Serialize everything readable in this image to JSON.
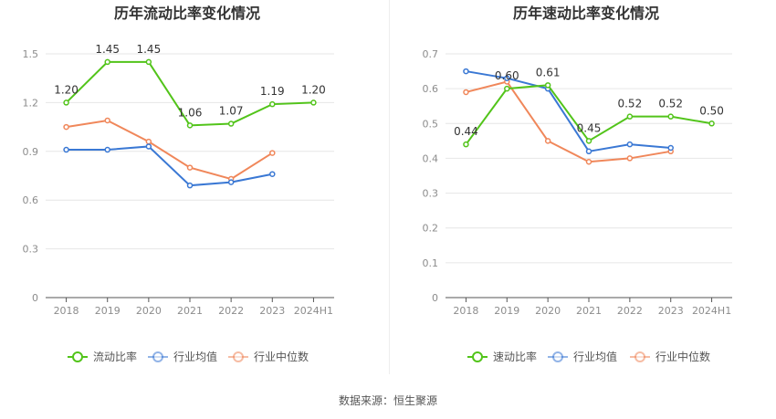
{
  "footer": {
    "source_label": "数据来源：恒生聚源"
  },
  "chart_data": [
    {
      "type": "line",
      "title": "历年流动比率变化情况",
      "categories": [
        "2018",
        "2019",
        "2020",
        "2021",
        "2022",
        "2023",
        "2024H1"
      ],
      "ylim": [
        0,
        1.5
      ],
      "yticks": [
        "0",
        "0.3",
        "0.6",
        "0.9",
        "1.2",
        "1.5"
      ],
      "grid": true,
      "legend_position": "bottom",
      "series": [
        {
          "name": "流动比率",
          "color": "#52c41a",
          "values": [
            1.2,
            1.45,
            1.45,
            1.06,
            1.07,
            1.19,
            1.2
          ],
          "labels": [
            "1.20",
            "1.45",
            "1.45",
            "1.06",
            "1.07",
            "1.19",
            "1.20"
          ]
        },
        {
          "name": "行业均值",
          "color": "#3a78d4",
          "values": [
            0.91,
            0.91,
            0.93,
            0.69,
            0.71,
            0.76,
            null
          ]
        },
        {
          "name": "行业中位数",
          "color": "#f0875a",
          "values": [
            1.05,
            1.09,
            0.96,
            0.8,
            0.73,
            0.89,
            null
          ]
        }
      ]
    },
    {
      "type": "line",
      "title": "历年速动比率变化情况",
      "categories": [
        "2018",
        "2019",
        "2020",
        "2021",
        "2022",
        "2023",
        "2024H1"
      ],
      "ylim": [
        0,
        0.7
      ],
      "yticks": [
        "0",
        "0.1",
        "0.2",
        "0.3",
        "0.4",
        "0.5",
        "0.6",
        "0.7"
      ],
      "grid": true,
      "legend_position": "bottom",
      "series": [
        {
          "name": "速动比率",
          "color": "#52c41a",
          "values": [
            0.44,
            0.6,
            0.61,
            0.45,
            0.52,
            0.52,
            0.5
          ],
          "labels": [
            "0.44",
            "0.60",
            "0.61",
            "0.45",
            "0.52",
            "0.52",
            "0.50"
          ]
        },
        {
          "name": "行业均值",
          "color": "#3a78d4",
          "values": [
            0.65,
            0.63,
            0.6,
            0.42,
            0.44,
            0.43,
            null
          ]
        },
        {
          "name": "行业中位数",
          "color": "#f0875a",
          "values": [
            0.59,
            0.62,
            0.45,
            0.39,
            0.4,
            0.42,
            null
          ]
        }
      ]
    }
  ]
}
